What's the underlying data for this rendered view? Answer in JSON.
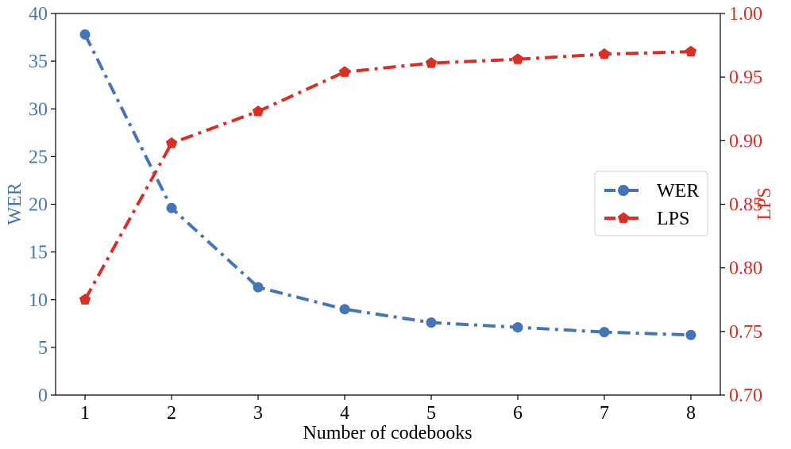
{
  "chart_data": {
    "type": "line",
    "title": "",
    "xlabel": "Number of codebooks",
    "ylabel_left": "WER",
    "ylabel_right": "LPS",
    "x": [
      1,
      2,
      3,
      4,
      5,
      6,
      7,
      8
    ],
    "xticks": [
      "1",
      "2",
      "3",
      "4",
      "5",
      "6",
      "7",
      "8"
    ],
    "ylim_left": [
      0,
      40
    ],
    "yticks_left": [
      "0",
      "5",
      "10",
      "15",
      "20",
      "25",
      "30",
      "35",
      "40"
    ],
    "ylim_right": [
      0.7,
      1.0
    ],
    "yticks_right": [
      "0.70",
      "0.75",
      "0.80",
      "0.85",
      "0.90",
      "0.95",
      "1.00"
    ],
    "grid": false,
    "legend_position": "center-right",
    "series": [
      {
        "name": "WER",
        "axis": "left",
        "marker": "circle",
        "color": "#4575b4",
        "values": [
          37.8,
          19.6,
          11.3,
          9.0,
          7.6,
          7.1,
          6.6,
          6.3
        ]
      },
      {
        "name": "LPS",
        "axis": "right",
        "marker": "pentagon",
        "color": "#d73027",
        "values": [
          0.775,
          0.898,
          0.923,
          0.954,
          0.961,
          0.964,
          0.968,
          0.97
        ]
      }
    ]
  }
}
